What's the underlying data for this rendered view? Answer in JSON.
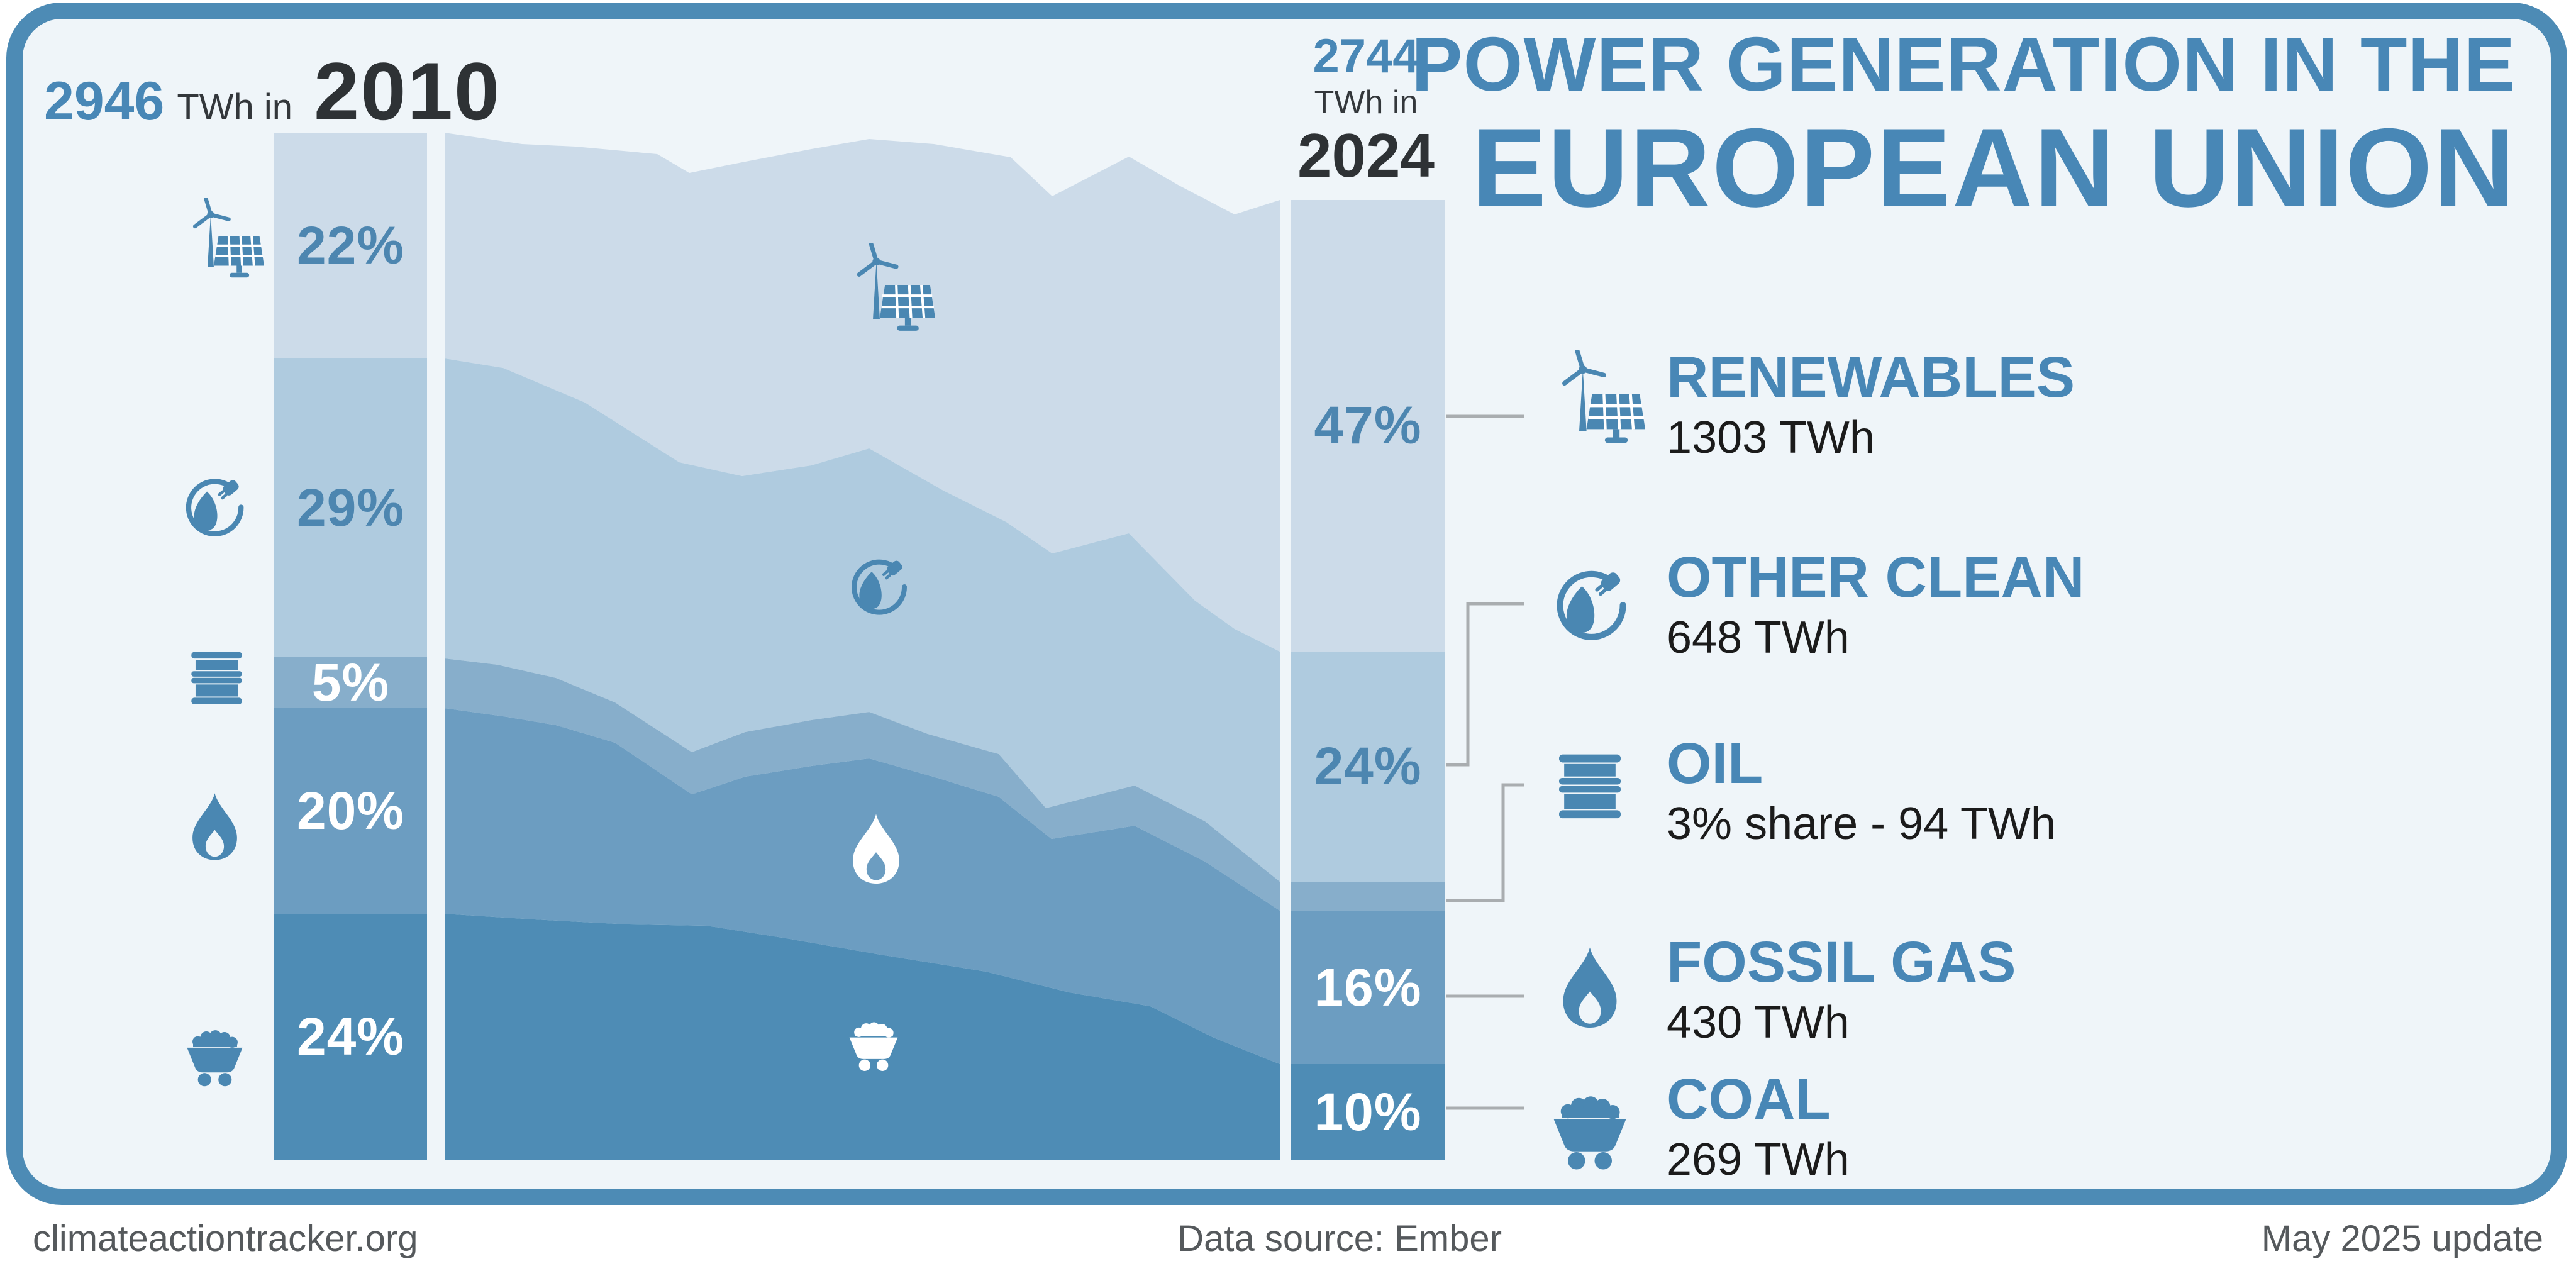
{
  "header": {
    "left": {
      "total": "2946",
      "unit": "TWh in",
      "year": "2010"
    },
    "right": {
      "total": "2744",
      "unit": "TWh in",
      "year": "2024"
    },
    "title_line1": "POWER GENERATION IN THE",
    "title_line2": "EUROPEAN UNION"
  },
  "legend": [
    {
      "id": "renewables",
      "name": "RENEWABLES",
      "value": "1303 TWh",
      "icon": "wind-solar-icon"
    },
    {
      "id": "other_clean",
      "name": "OTHER CLEAN",
      "value": "648 TWh",
      "icon": "plug-leaf-icon"
    },
    {
      "id": "oil",
      "name": "OIL",
      "value": "3% share - 94 TWh",
      "icon": "oil-barrel-icon"
    },
    {
      "id": "fossil_gas",
      "name": "FOSSIL GAS",
      "value": "430 TWh",
      "icon": "flame-icon"
    },
    {
      "id": "coal",
      "name": "COAL",
      "value": "269 TWh",
      "icon": "coal-cart-icon"
    }
  ],
  "footer": {
    "site": "climateactiontracker.org",
    "source": "Data source: Ember",
    "update": "May 2025 update"
  },
  "chart_data": {
    "type": "area",
    "title": "Power generation in the European Union",
    "years_range": [
      2010,
      2024
    ],
    "totals_twh": {
      "y2010": 2946,
      "y2024": 2744
    },
    "categories": [
      "Renewables",
      "Other clean",
      "Oil",
      "Fossil gas",
      "Coal"
    ],
    "series": [
      {
        "name": "Renewables",
        "share_2010_pct": 22,
        "share_2024_pct": 47,
        "twh_2024": 1303,
        "color": "#ccdbe9",
        "label_2010": "22%",
        "label_2024": "47%",
        "label_style": "dark"
      },
      {
        "name": "Other clean",
        "share_2010_pct": 29,
        "share_2024_pct": 24,
        "twh_2024": 648,
        "color": "#afcbdf",
        "label_2010": "29%",
        "label_2024": "24%",
        "label_style": "dark"
      },
      {
        "name": "Oil",
        "share_2010_pct": 5,
        "share_2024_pct": 3,
        "twh_2024": 94,
        "color": "#87aecb",
        "label_2010": "5%",
        "label_2024": "",
        "label_style": "light"
      },
      {
        "name": "Fossil gas",
        "share_2010_pct": 20,
        "share_2024_pct": 16,
        "twh_2024": 430,
        "color": "#6c9dc1",
        "label_2010": "20%",
        "label_2024": "16%",
        "label_style": "light"
      },
      {
        "name": "Coal",
        "share_2010_pct": 24,
        "share_2024_pct": 10,
        "twh_2024": 269,
        "color": "#4e8cb5",
        "label_2010": "24%",
        "label_2024": "10%",
        "label_style": "light"
      }
    ],
    "flow_boundaries": {
      "x_left": 707,
      "x_right": 2035,
      "bottom_y": 1845,
      "top": [
        [
          707,
          211
        ],
        [
          830,
          229
        ],
        [
          915,
          233
        ],
        [
          1045,
          245
        ],
        [
          1096,
          275
        ],
        [
          1180,
          258
        ],
        [
          1290,
          237
        ],
        [
          1382,
          221
        ],
        [
          1485,
          229
        ],
        [
          1607,
          250
        ],
        [
          1673,
          312
        ],
        [
          1795,
          249
        ],
        [
          1875,
          295
        ],
        [
          1963,
          341
        ],
        [
          2035,
          318
        ]
      ],
      "b1": [
        [
          707,
          570
        ],
        [
          800,
          585
        ],
        [
          930,
          640
        ],
        [
          1080,
          735
        ],
        [
          1180,
          757
        ],
        [
          1290,
          740
        ],
        [
          1382,
          713
        ],
        [
          1500,
          780
        ],
        [
          1600,
          830
        ],
        [
          1673,
          880
        ],
        [
          1795,
          848
        ],
        [
          1900,
          955
        ],
        [
          1963,
          1000
        ],
        [
          2035,
          1036
        ]
      ],
      "b2": [
        [
          707,
          1047
        ],
        [
          791,
          1057
        ],
        [
          884,
          1078
        ],
        [
          978,
          1117
        ],
        [
          1100,
          1196
        ],
        [
          1185,
          1164
        ],
        [
          1290,
          1145
        ],
        [
          1382,
          1132
        ],
        [
          1475,
          1167
        ],
        [
          1588,
          1199
        ],
        [
          1663,
          1285
        ],
        [
          1804,
          1249
        ],
        [
          1916,
          1306
        ],
        [
          2035,
          1402
        ]
      ],
      "b3": [
        [
          707,
          1126
        ],
        [
          800,
          1139
        ],
        [
          884,
          1153
        ],
        [
          978,
          1181
        ],
        [
          1100,
          1263
        ],
        [
          1185,
          1235
        ],
        [
          1290,
          1218
        ],
        [
          1382,
          1206
        ],
        [
          1494,
          1238
        ],
        [
          1588,
          1267
        ],
        [
          1672,
          1334
        ],
        [
          1804,
          1313
        ],
        [
          1916,
          1370
        ],
        [
          2035,
          1448
        ]
      ],
      "b4": [
        [
          707,
          1453
        ],
        [
          850,
          1462
        ],
        [
          1000,
          1470
        ],
        [
          1124,
          1472
        ],
        [
          1250,
          1492
        ],
        [
          1400,
          1518
        ],
        [
          1568,
          1545
        ],
        [
          1700,
          1578
        ],
        [
          1829,
          1600
        ],
        [
          1930,
          1650
        ],
        [
          2035,
          1692
        ]
      ]
    },
    "legend_position": "right",
    "grid": false,
    "colors": {
      "accent": "#4887b6",
      "pct_dark_text": "#4d86b0",
      "card_bg": "#eff5f9",
      "border": "#4d8bb5",
      "connector": "#a9adb0",
      "footer_text": "#55595c"
    }
  }
}
